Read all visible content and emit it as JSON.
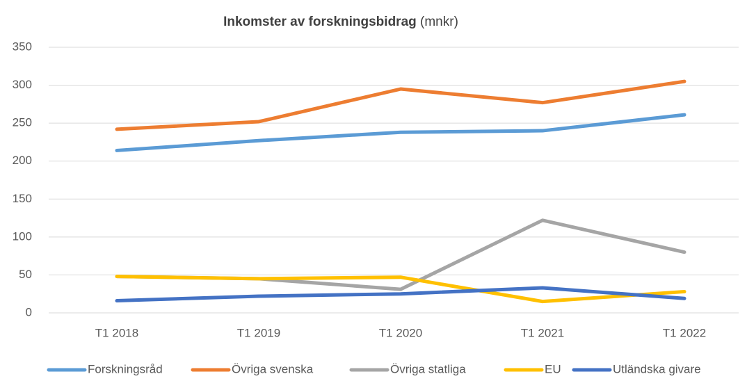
{
  "chart_data": {
    "type": "line",
    "title": "Inkomster av forskningsbidrag",
    "title_unit": "(mnkr)",
    "categories": [
      "T1 2018",
      "T1 2019",
      "T1 2020",
      "T1 2021",
      "T1 2022"
    ],
    "series": [
      {
        "name": "Forskningsråd",
        "color": "#5b9bd5",
        "values": [
          214,
          227,
          238,
          240,
          261
        ]
      },
      {
        "name": "Övriga svenska",
        "color": "#ed7d31",
        "values": [
          242,
          252,
          295,
          277,
          305
        ]
      },
      {
        "name": "Övriga statliga",
        "color": "#a5a5a5",
        "values": [
          48,
          45,
          31,
          122,
          80
        ]
      },
      {
        "name": "EU",
        "color": "#ffc000",
        "values": [
          48,
          45,
          47,
          15,
          28
        ]
      },
      {
        "name": "Utländska givare",
        "color": "#4472c4",
        "values": [
          16,
          22,
          25,
          33,
          19
        ]
      }
    ],
    "ylim": [
      0,
      350
    ],
    "yticks": [
      0,
      50,
      100,
      150,
      200,
      250,
      300,
      350
    ],
    "grid": true,
    "legend": "bottom"
  }
}
